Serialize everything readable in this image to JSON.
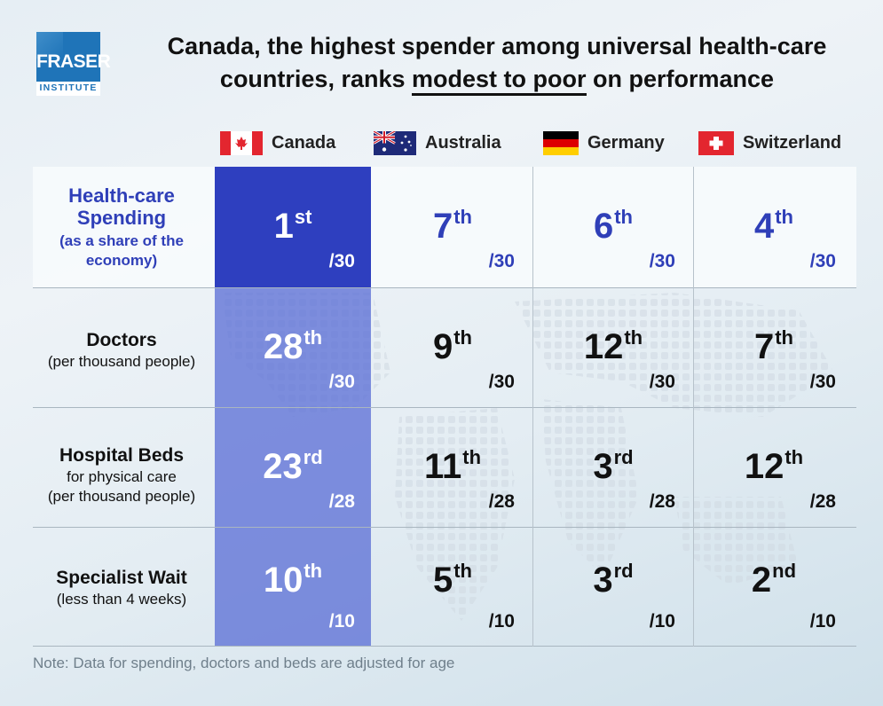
{
  "logo": {
    "name": "FRASER",
    "sub": "INSTITUTE"
  },
  "title": {
    "line1": "Canada, the highest spender among universal health-care",
    "line2_pre": "countries, ranks ",
    "line2_underlined": "modest to poor",
    "line2_post": " on performance"
  },
  "countries": [
    {
      "name": "Canada",
      "flag": "canada-flag-icon"
    },
    {
      "name": "Australia",
      "flag": "australia-flag-icon"
    },
    {
      "name": "Germany",
      "flag": "germany-flag-icon"
    },
    {
      "name": "Switzerland",
      "flag": "switzerland-flag-icon"
    }
  ],
  "colors": {
    "canada_top": "#2e3fbf",
    "canada_col": "#5d71d6",
    "spending_text": "#2f3fb8",
    "dark_text": "#111111"
  },
  "chart_data": {
    "type": "table",
    "title": "Canada, the highest spender among universal health-care countries, ranks modest to poor on performance",
    "columns": [
      "Canada",
      "Australia",
      "Germany",
      "Switzerland"
    ],
    "rows": [
      {
        "label": "Health-care Spending",
        "sublabel": "(as a share of the economy)",
        "ranks": [
          {
            "num": "1",
            "suffix": "st"
          },
          {
            "num": "7",
            "suffix": "th"
          },
          {
            "num": "6",
            "suffix": "th"
          },
          {
            "num": "4",
            "suffix": "th"
          }
        ],
        "total": "/30"
      },
      {
        "label": "Doctors",
        "sublabel": "(per thousand people)",
        "ranks": [
          {
            "num": "28",
            "suffix": "th"
          },
          {
            "num": "9",
            "suffix": "th"
          },
          {
            "num": "12",
            "suffix": "th"
          },
          {
            "num": "7",
            "suffix": "th"
          }
        ],
        "total": "/30"
      },
      {
        "label": "Hospital Beds",
        "sublabel": "for physical care",
        "sublabel2": "(per thousand people)",
        "ranks": [
          {
            "num": "23",
            "suffix": "rd"
          },
          {
            "num": "11",
            "suffix": "th"
          },
          {
            "num": "3",
            "suffix": "rd"
          },
          {
            "num": "12",
            "suffix": "th"
          }
        ],
        "total": "/28"
      },
      {
        "label": "Specialist Wait",
        "sublabel": "(less than 4 weeks)",
        "ranks": [
          {
            "num": "10",
            "suffix": "th"
          },
          {
            "num": "5",
            "suffix": "th"
          },
          {
            "num": "3",
            "suffix": "rd"
          },
          {
            "num": "2",
            "suffix": "nd"
          }
        ],
        "total": "/10"
      }
    ]
  },
  "note": "Note: Data for spending, doctors and beds are adjusted for age"
}
